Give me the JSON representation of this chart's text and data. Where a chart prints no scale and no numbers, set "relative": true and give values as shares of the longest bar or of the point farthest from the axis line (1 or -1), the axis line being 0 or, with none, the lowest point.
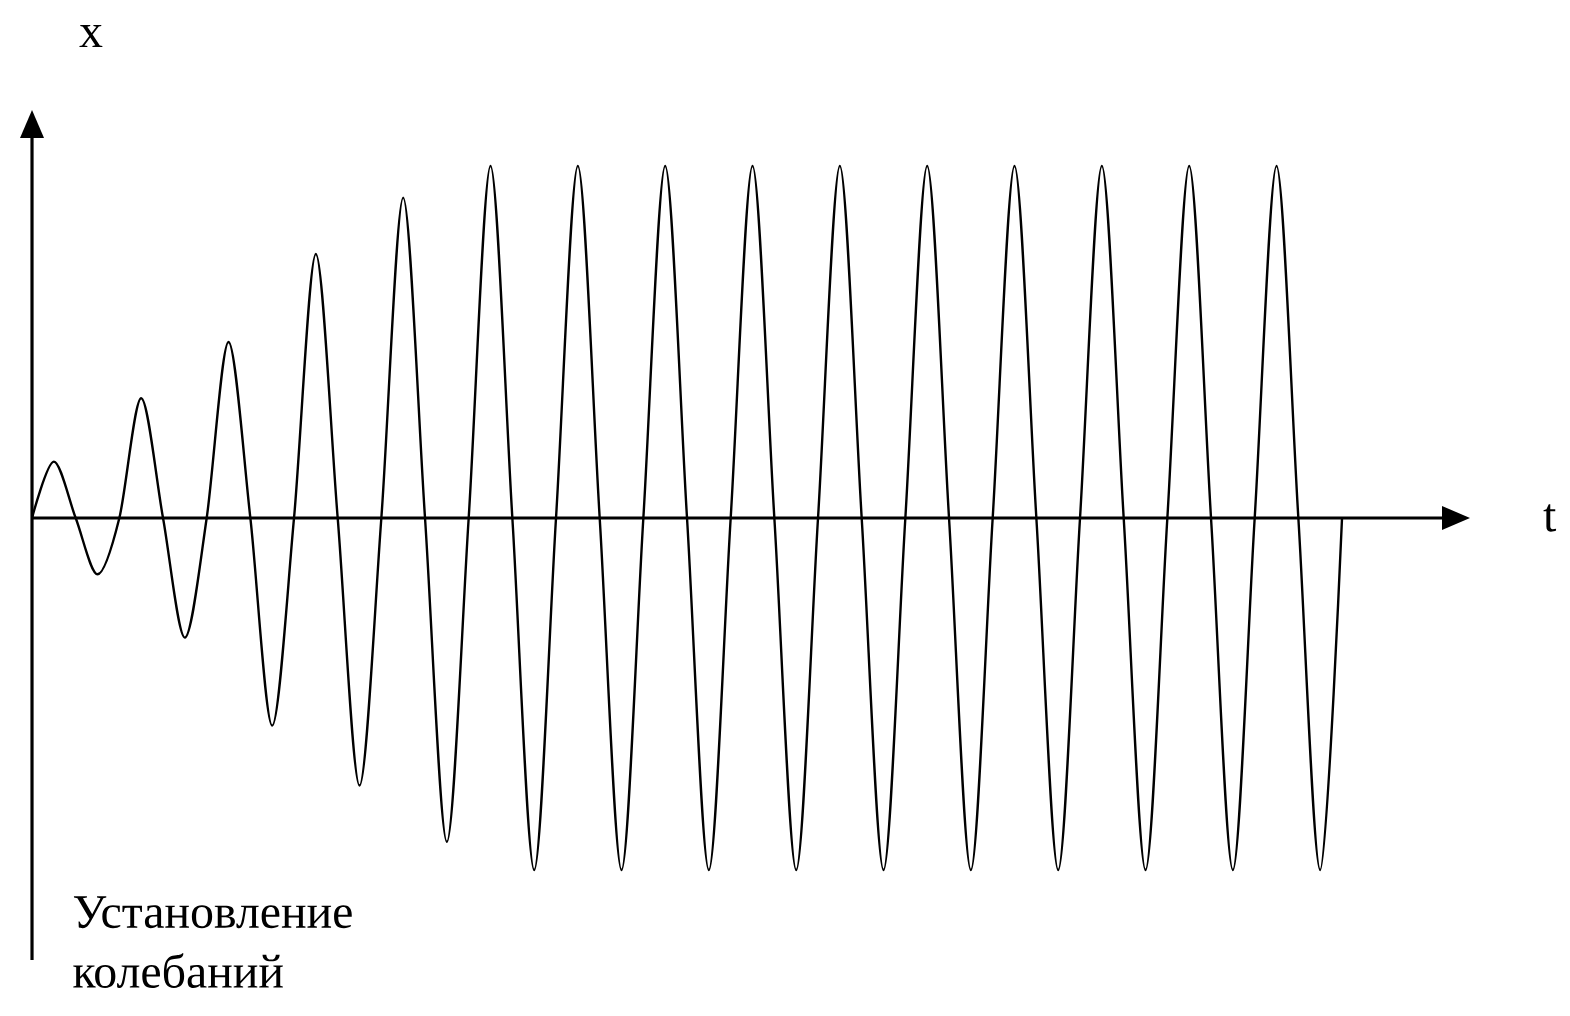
{
  "chart_data": {
    "type": "line",
    "relative": true,
    "xlabel": "t",
    "ylabel": "x",
    "annotations": [
      "Установление колебаний"
    ],
    "categories": [
      null,
      null,
      null,
      null,
      null,
      null,
      null,
      null,
      null,
      null,
      null,
      null,
      null,
      null,
      null,
      null,
      null,
      null,
      null,
      null,
      null,
      null,
      null,
      null,
      null,
      null,
      null,
      null,
      null,
      null,
      null,
      null,
      null,
      null,
      null,
      null,
      null,
      null,
      null,
      null,
      null,
      null,
      null,
      null,
      null,
      null,
      null,
      null,
      null,
      null,
      null,
      null,
      null,
      null,
      null,
      null,
      null,
      null,
      null,
      null,
      null
    ],
    "color": "#000000",
    "values": [
      0,
      0.16,
      0,
      -0.16,
      0,
      0.34,
      0,
      -0.34,
      0,
      0.5,
      0,
      -0.59,
      0,
      0.75,
      0,
      -0.76,
      0,
      0.91,
      0,
      -0.92,
      0,
      1,
      0,
      -1,
      0,
      1,
      0,
      -1,
      0,
      1,
      0,
      -1,
      0,
      1,
      0,
      -1,
      0,
      1,
      0,
      -1,
      0,
      1,
      0,
      -1,
      0,
      1,
      0,
      -1,
      0,
      1,
      0,
      -1,
      0,
      1,
      0,
      -1,
      0,
      1,
      0,
      -1,
      0
    ]
  }
}
